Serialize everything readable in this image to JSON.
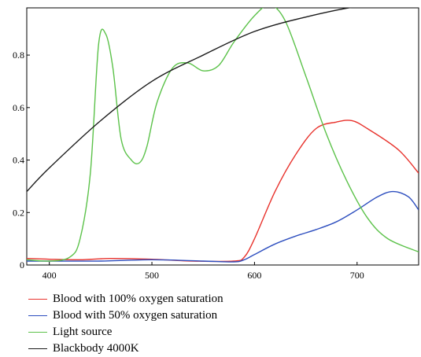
{
  "chart_data": {
    "type": "line",
    "title": "",
    "xlabel": "",
    "ylabel": "",
    "xlim": [
      378,
      760
    ],
    "ylim": [
      0,
      0.98
    ],
    "x_ticks": [
      400,
      500,
      600,
      700
    ],
    "x_tick_labels": [
      "400",
      "500",
      "600",
      "700"
    ],
    "y_ticks": [
      0,
      0.2,
      0.4,
      0.6,
      0.8
    ],
    "y_tick_labels": [
      "0",
      "0.2",
      "0.4",
      "0.6",
      "0.8"
    ],
    "grid": false,
    "legend_position": "below",
    "series": [
      {
        "name": "Blood with 100% oxygen saturation",
        "color": "#e8322c",
        "x": [
          378,
          400,
          430,
          460,
          500,
          540,
          580,
          590,
          600,
          620,
          640,
          660,
          680,
          695,
          710,
          740,
          760
        ],
        "y": [
          0.025,
          0.022,
          0.02,
          0.025,
          0.022,
          0.015,
          0.015,
          0.03,
          0.1,
          0.28,
          0.42,
          0.52,
          0.545,
          0.55,
          0.52,
          0.44,
          0.35
        ]
      },
      {
        "name": "Blood with 50% oxygen saturation",
        "color": "#2e4fbf",
        "x": [
          378,
          400,
          450,
          500,
          550,
          580,
          590,
          600,
          620,
          640,
          660,
          680,
          700,
          720,
          735,
          750,
          760
        ],
        "y": [
          0.015,
          0.015,
          0.015,
          0.02,
          0.015,
          0.012,
          0.02,
          0.04,
          0.08,
          0.11,
          0.135,
          0.165,
          0.21,
          0.26,
          0.28,
          0.26,
          0.21
        ]
      },
      {
        "name": "Light source",
        "color": "#5cc24a",
        "x": [
          378,
          400,
          420,
          430,
          440,
          448,
          455,
          462,
          470,
          480,
          488,
          495,
          505,
          520,
          535,
          550,
          565,
          580,
          600,
          615,
          630,
          650,
          670,
          690,
          710,
          730,
          760
        ],
        "y": [
          0.02,
          0.015,
          0.03,
          0.1,
          0.35,
          0.84,
          0.88,
          0.75,
          0.48,
          0.4,
          0.39,
          0.45,
          0.62,
          0.75,
          0.77,
          0.74,
          0.76,
          0.85,
          0.95,
          0.99,
          0.93,
          0.72,
          0.5,
          0.32,
          0.18,
          0.1,
          0.05
        ]
      },
      {
        "name": "Blackbody 4000K",
        "color": "#1a1a1a",
        "x": [
          378,
          400,
          450,
          500,
          550,
          600,
          650,
          700,
          740,
          760
        ],
        "y": [
          0.28,
          0.37,
          0.55,
          0.7,
          0.8,
          0.89,
          0.945,
          0.985,
          0.995,
          0.99
        ]
      }
    ]
  }
}
